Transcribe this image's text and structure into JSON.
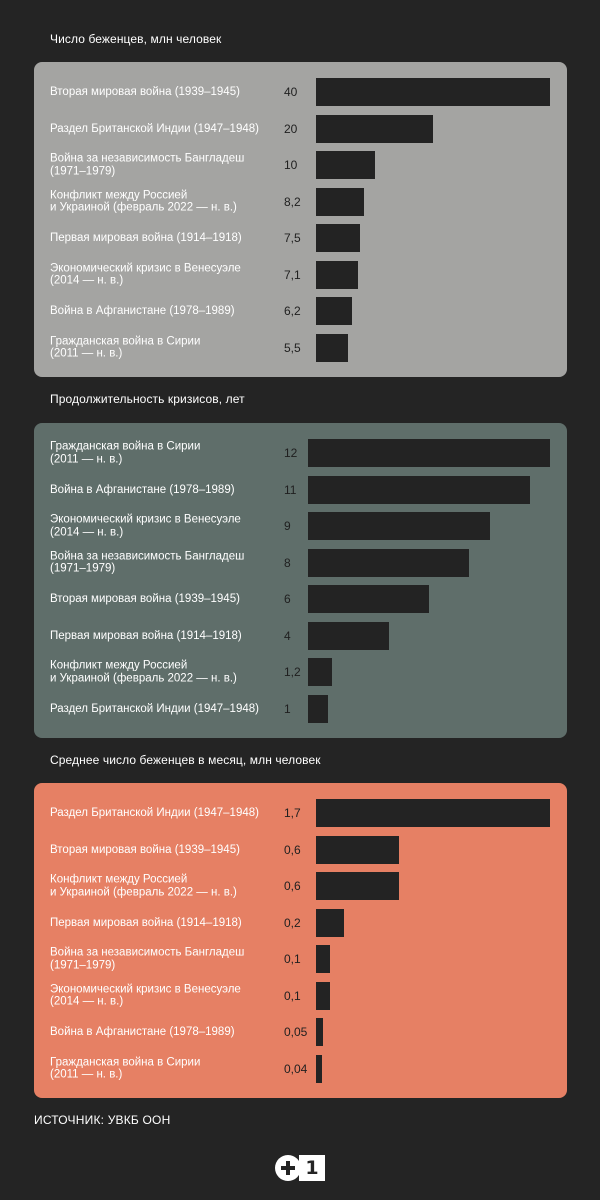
{
  "chart_data": [
    {
      "type": "bar",
      "title": "Число беженцев, млн человек",
      "panel_color": "#a4a4a2",
      "bar_color": "#232323",
      "categories": [
        "Вторая мировая война (1939–1945)",
        "Раздел Британской Индии (1947–1948)",
        "Война за независимость Бангладеш\n(1971–1979)",
        "Конфликт между Россией\nи Украиной (февраль 2022 — н. в.)",
        "Первая мировая война (1914–1918)",
        "Экономический кризис в Венесуэле\n(2014 — н. в.)",
        "Война в Афганистане (1978–1989)",
        "Гражданская война в Сирии\n(2011 — н. в.)"
      ],
      "values": [
        40,
        20,
        10,
        8.2,
        7.5,
        7.1,
        6.2,
        5.5
      ],
      "value_labels": [
        "40",
        "20",
        "10",
        "8,2",
        "7,5",
        "7,1",
        "6,2",
        "5,5"
      ]
    },
    {
      "type": "bar",
      "title": "Продолжительность кризисов, лет",
      "panel_color": "#5f6e6a",
      "bar_color": "#232323",
      "categories": [
        "Гражданская война в Сирии\n(2011 — н. в.)",
        "Война в Афганистане (1978–1989)",
        "Экономический кризис в Венесуэле\n(2014 — н. в.)",
        "Война за независимость Бангладеш\n(1971–1979)",
        "Вторая мировая война (1939–1945)",
        "Первая мировая война (1914–1918)",
        "Конфликт между Россией\nи Украиной (февраль 2022 — н. в.)",
        "Раздел Британской Индии (1947–1948)"
      ],
      "values": [
        12,
        11,
        9,
        8,
        6,
        4,
        1.2,
        1
      ],
      "value_labels": [
        "12",
        "11",
        "9",
        "8",
        "6",
        "4",
        "1,2",
        "1"
      ]
    },
    {
      "type": "bar",
      "title": "Среднее число беженцев в месяц, млн человек",
      "panel_color": "#e68064",
      "bar_color": "#232323",
      "categories": [
        "Раздел Британской Индии (1947–1948)",
        "Вторая мировая война (1939–1945)",
        "Конфликт между Россией\nи Украиной (февраль 2022 — н. в.)",
        "Первая мировая война (1914–1918)",
        "Война за независимость Бангладеш\n(1971–1979)",
        "Экономический кризис в Венесуэле\n(2014 — н. в.)",
        "Война в Афганистане (1978–1989)",
        "Гражданская война в Сирии\n(2011 — н. в.)"
      ],
      "values": [
        1.7,
        0.6,
        0.6,
        0.2,
        0.1,
        0.1,
        0.05,
        0.04
      ],
      "value_labels": [
        "1,7",
        "0,6",
        "0,6",
        "0,2",
        "0,1",
        "0,1",
        "0,05",
        "0,04"
      ]
    }
  ],
  "source": "ИСТОЧНИК: УВКБ ООН",
  "logo": {
    "plus": "+",
    "one": "1"
  }
}
